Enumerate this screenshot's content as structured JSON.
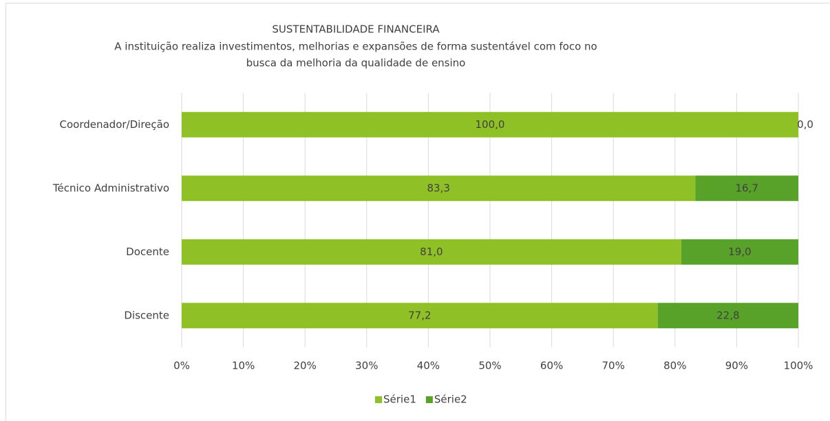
{
  "chart_data": {
    "type": "stacked_barh",
    "title": "SUSTENTABILIDADE FINANCEIRA",
    "subtitle": [
      "A instituição realiza investimentos, melhorias e expansões de forma sustentável com foco no",
      "busca da melhoria da qualidade de ensino"
    ],
    "categories": [
      "Coordenador/Direção",
      "Técnico Administrativo",
      "Docente",
      "Discente"
    ],
    "series": [
      {
        "name": "Série1",
        "color": "#8fc127",
        "values": [
          100,
          83.3,
          81,
          77.2
        ],
        "value_labels": [
          "100,0",
          "83,3",
          "81,0",
          "77,2"
        ]
      },
      {
        "name": "Série2",
        "color": "#58a22a",
        "values": [
          0,
          16.7,
          19,
          22.8
        ],
        "value_labels": [
          "0,0",
          "16,7",
          "19,0",
          "22,8"
        ]
      }
    ],
    "xlim": [
      0,
      100
    ],
    "xticks": [
      {
        "value": 0,
        "label": "0%"
      },
      {
        "value": 10,
        "label": "10%"
      },
      {
        "value": 20,
        "label": "20%"
      },
      {
        "value": 30,
        "label": "30%"
      },
      {
        "value": 40,
        "label": "40%"
      },
      {
        "value": 50,
        "label": "50%"
      },
      {
        "value": 60,
        "label": "60%"
      },
      {
        "value": 70,
        "label": "70%"
      },
      {
        "value": 80,
        "label": "80%"
      },
      {
        "value": 90,
        "label": "90%"
      },
      {
        "value": 100,
        "label": "100%"
      }
    ],
    "grid": true,
    "legend": "bottom"
  }
}
